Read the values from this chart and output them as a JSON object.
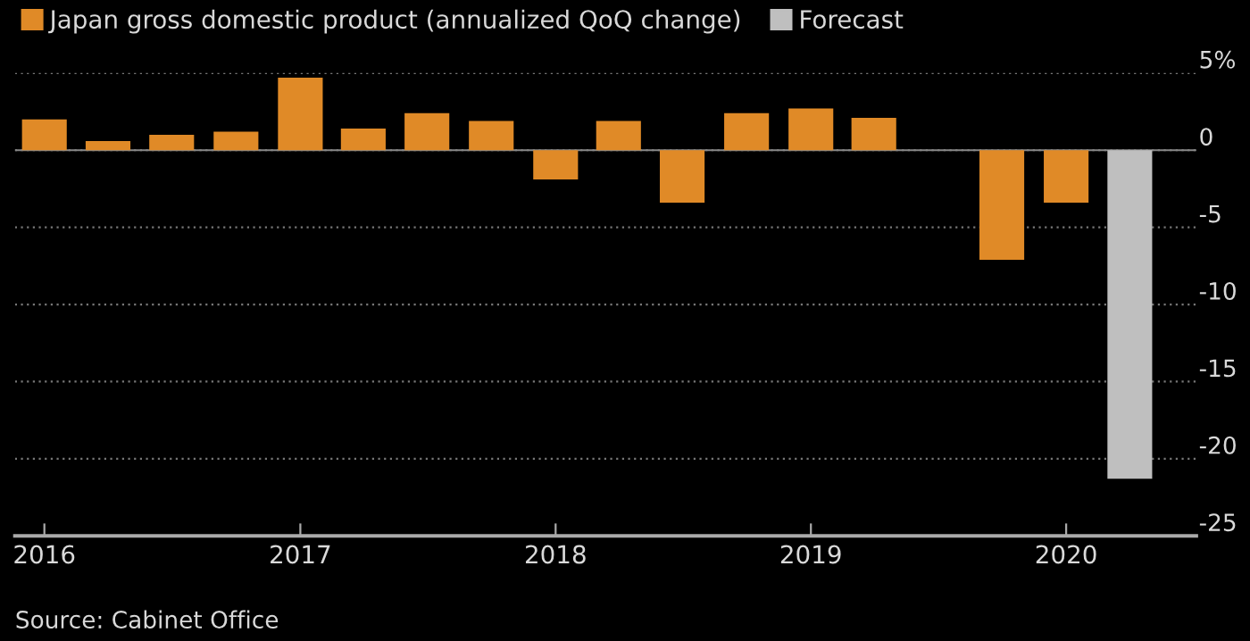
{
  "chart_data": {
    "type": "bar",
    "series": [
      {
        "name": "Japan gross domestic product (annualized QoQ change)",
        "color": "#e08a27",
        "x": [
          "2016-01",
          "2016-04",
          "2016-07",
          "2016-10",
          "2017-01",
          "2017-04",
          "2017-07",
          "2017-10",
          "2018-01",
          "2018-04",
          "2018-07",
          "2018-10",
          "2019-01",
          "2019-04",
          "2019-07",
          "2019-10",
          "2020-01"
        ],
        "values": [
          2.0,
          0.6,
          1.0,
          1.2,
          4.7,
          1.4,
          2.4,
          1.9,
          -1.9,
          1.9,
          -3.4,
          2.4,
          2.7,
          2.1,
          null,
          -7.1,
          -3.4
        ]
      },
      {
        "name": "Forecast",
        "color": "#bfbfbf",
        "x": [
          "2020-04"
        ],
        "values": [
          -21.3
        ]
      }
    ],
    "xlim": [
      "2015-11-20",
      "2020-07-05"
    ],
    "xticks": [
      {
        "value": "2016-01",
        "label": "2016"
      },
      {
        "value": "2017-01",
        "label": "2017"
      },
      {
        "value": "2018-01",
        "label": "2018"
      },
      {
        "value": "2019-01",
        "label": "2019"
      },
      {
        "value": "2020-01",
        "label": "2020"
      }
    ],
    "ylim": [
      -25,
      5
    ],
    "yticks": [
      {
        "value": 5,
        "label": "5%"
      },
      0,
      -5,
      -10,
      -15,
      -20,
      -25
    ],
    "grid": "y",
    "legend": "top left",
    "annotations": [
      "Source: Cabinet Office"
    ]
  }
}
